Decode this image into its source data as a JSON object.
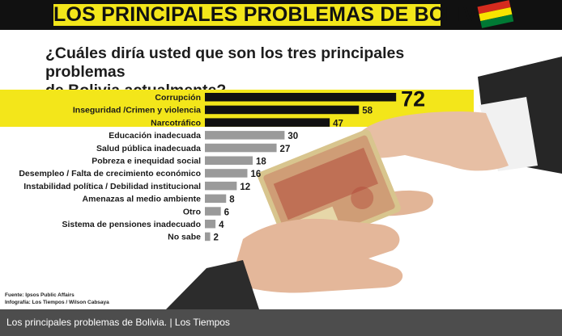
{
  "header": {
    "title": "LOS PRINCIPALES PROBLEMAS DE BOLIVIA",
    "flag_colors": [
      "#d52b1e",
      "#f9e300",
      "#007934"
    ]
  },
  "question": {
    "line1": "¿Cuáles diría usted que son los tres principales problemas",
    "line2": "de Bolivia actualmente?"
  },
  "chart_data": {
    "type": "bar",
    "orientation": "horizontal",
    "categories": [
      "Corrupción",
      "Inseguridad /Crimen y violencia",
      "Narcotráfico",
      "Educación inadecuada",
      "Salud pública inadecuada",
      "Pobreza e inequidad social",
      "Desempleo / Falta de crecimiento económico",
      "Instabilidad política / Debilidad institucional",
      "Amenazas al medio ambiente",
      "Otro",
      "Sistema de pensiones inadecuado",
      "No sabe"
    ],
    "values": [
      72,
      58,
      47,
      30,
      27,
      18,
      16,
      12,
      8,
      6,
      4,
      2
    ],
    "highlighted_top": 3,
    "colors": {
      "top": "#111111",
      "rest": "#9a9a9a",
      "highlight_band": "#f3e61a"
    }
  },
  "source": {
    "line1": "Fuente: Ipsos Public Affairs",
    "line2": "Infografía: Los Tiempos / Wilson Cabsaya"
  },
  "caption": "Los principales problemas de Bolivia. | Los Tiempos"
}
